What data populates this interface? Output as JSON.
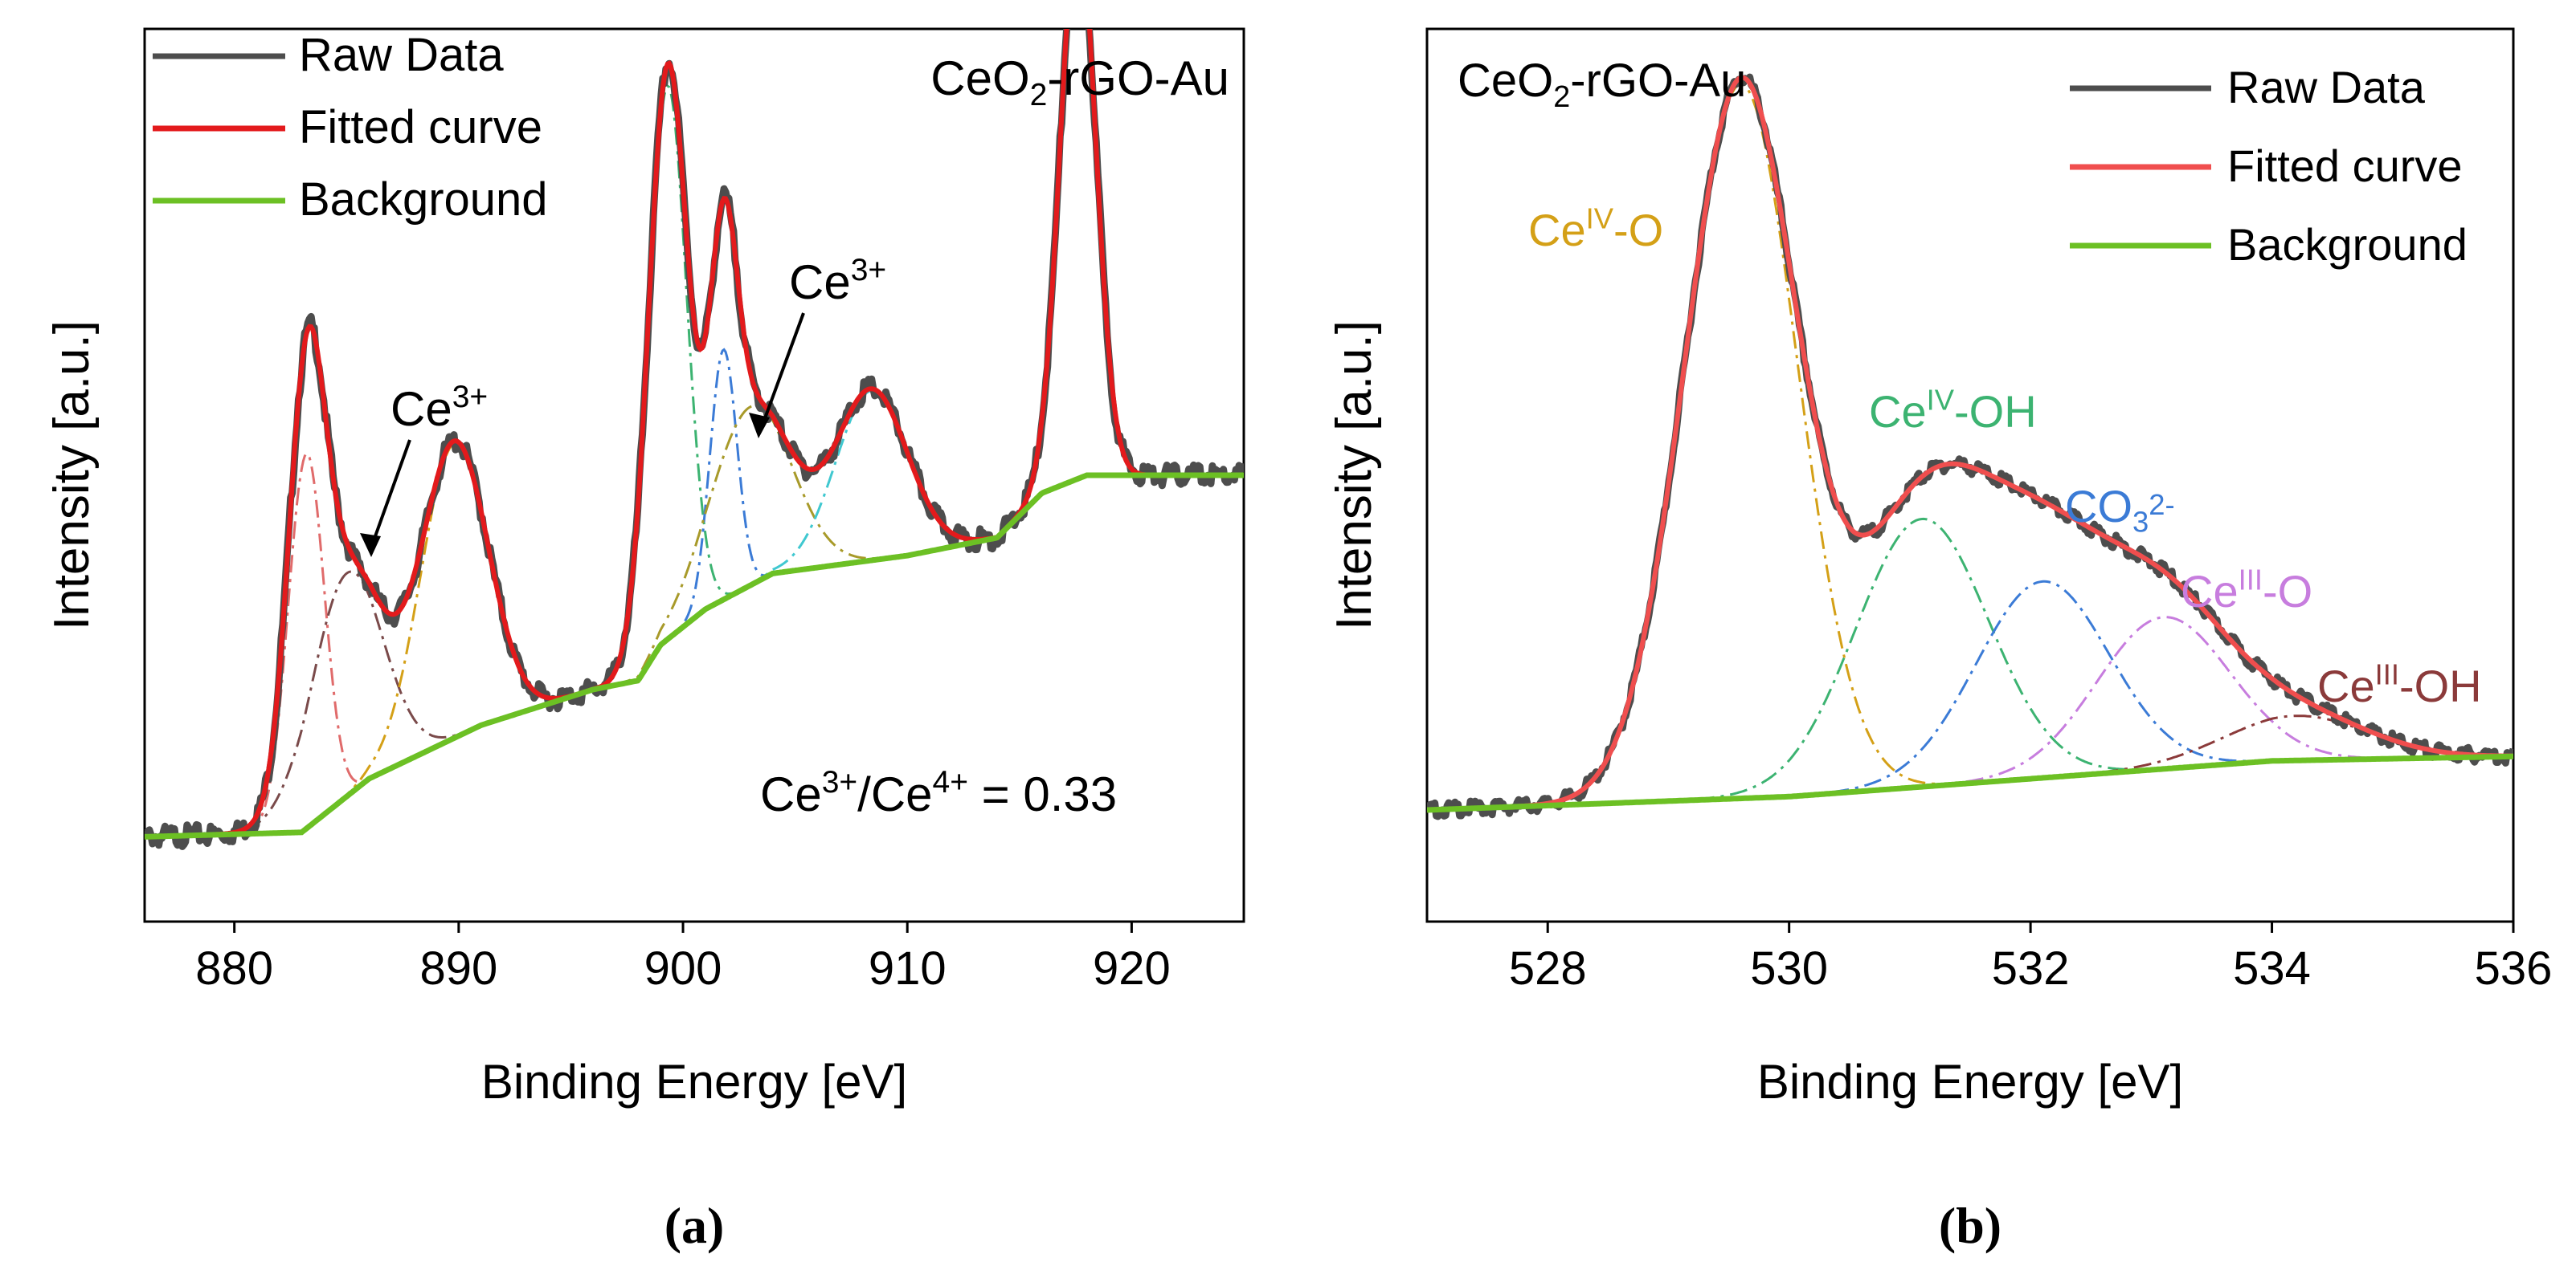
{
  "chart_data": [
    {
      "id": "a",
      "type": "line",
      "caption": "(a)",
      "xlabel": "Binding Energy [eV]",
      "ylabel": "Intensity [a.u.]",
      "xlim": [
        876,
        925
      ],
      "ylim": [
        0,
        1
      ],
      "xticks": [
        880,
        890,
        900,
        910,
        920
      ],
      "sample_label": "CeO2-rGO-Au",
      "legend": [
        "Raw Data",
        "Fitted curve",
        "Background"
      ],
      "ratio_text": "Ce3+/Ce4+ = 0.33",
      "annotations": [
        "Ce3+",
        "Ce3+"
      ],
      "colors": {
        "raw": "#4d4d4d",
        "fit": "#e31a1c",
        "background": "#6cc024",
        "c1": "#e06b6b",
        "c2": "#7a4a4a",
        "c3": "#d4a017",
        "c4": "#3cb371",
        "c5": "#3b7bd6",
        "c6": "#a89a2a",
        "c7": "#40c8d0",
        "c8": "#c0c0c0"
      },
      "background": [
        [
          876,
          0.095
        ],
        [
          883,
          0.1
        ],
        [
          886,
          0.16
        ],
        [
          891,
          0.22
        ],
        [
          896,
          0.26
        ],
        [
          898,
          0.27
        ],
        [
          899,
          0.31
        ],
        [
          901,
          0.35
        ],
        [
          904,
          0.39
        ],
        [
          910,
          0.41
        ],
        [
          914,
          0.43
        ],
        [
          916,
          0.48
        ],
        [
          918,
          0.5
        ],
        [
          925,
          0.5
        ]
      ],
      "components": [
        {
          "key": "c1",
          "center": 883.2,
          "amp": 0.42,
          "sigma": 0.8
        },
        {
          "key": "c2",
          "center": 885.0,
          "amp": 0.25,
          "sigma": 1.6
        },
        {
          "key": "c3",
          "center": 889.8,
          "amp": 0.33,
          "sigma": 1.5
        },
        {
          "key": "c4",
          "center": 899.3,
          "amp": 0.62,
          "sigma": 0.85
        },
        {
          "key": "c5",
          "center": 901.8,
          "amp": 0.28,
          "sigma": 0.6
        },
        {
          "key": "c6",
          "center": 903.0,
          "amp": 0.2,
          "sigma": 1.8
        },
        {
          "key": "c7",
          "center": 908.4,
          "amp": 0.19,
          "sigma": 1.6
        },
        {
          "key": "c8",
          "center": 917.6,
          "amp": 0.62,
          "sigma": 0.8
        }
      ]
    },
    {
      "id": "b",
      "type": "line",
      "caption": "(b)",
      "xlabel": "Binding Energy [eV]",
      "ylabel": "Intensity [a.u.]",
      "xlim": [
        527,
        536
      ],
      "ylim": [
        0,
        1
      ],
      "xticks": [
        528,
        530,
        532,
        534,
        536
      ],
      "sample_label": "CeO2-rGO-Au",
      "legend": [
        "Raw Data",
        "Fitted curve",
        "Background"
      ],
      "annotations": [
        "CeIV-O",
        "CeIV-OH",
        "CO32-",
        "CeIII-O",
        "CeIII-OH"
      ],
      "colors": {
        "raw": "#4d4d4d",
        "fit": "#f04e4e",
        "background": "#6cc024",
        "p1": "#d4a017",
        "p2": "#3cb371",
        "p3": "#3b7bd6",
        "p4": "#c77dde",
        "p5": "#8b3a3a"
      },
      "background": [
        [
          527,
          0.125
        ],
        [
          530,
          0.14
        ],
        [
          532,
          0.16
        ],
        [
          534,
          0.18
        ],
        [
          536,
          0.185
        ]
      ],
      "components": [
        {
          "key": "p1",
          "center": 529.6,
          "amp": 0.8,
          "sigma": 0.47
        },
        {
          "key": "p2",
          "center": 531.1,
          "amp": 0.3,
          "sigma": 0.55
        },
        {
          "key": "p3",
          "center": 532.1,
          "amp": 0.22,
          "sigma": 0.55
        },
        {
          "key": "p4",
          "center": 533.1,
          "amp": 0.17,
          "sigma": 0.55
        },
        {
          "key": "p5",
          "center": 534.2,
          "amp": 0.05,
          "sigma": 0.6
        }
      ]
    }
  ]
}
